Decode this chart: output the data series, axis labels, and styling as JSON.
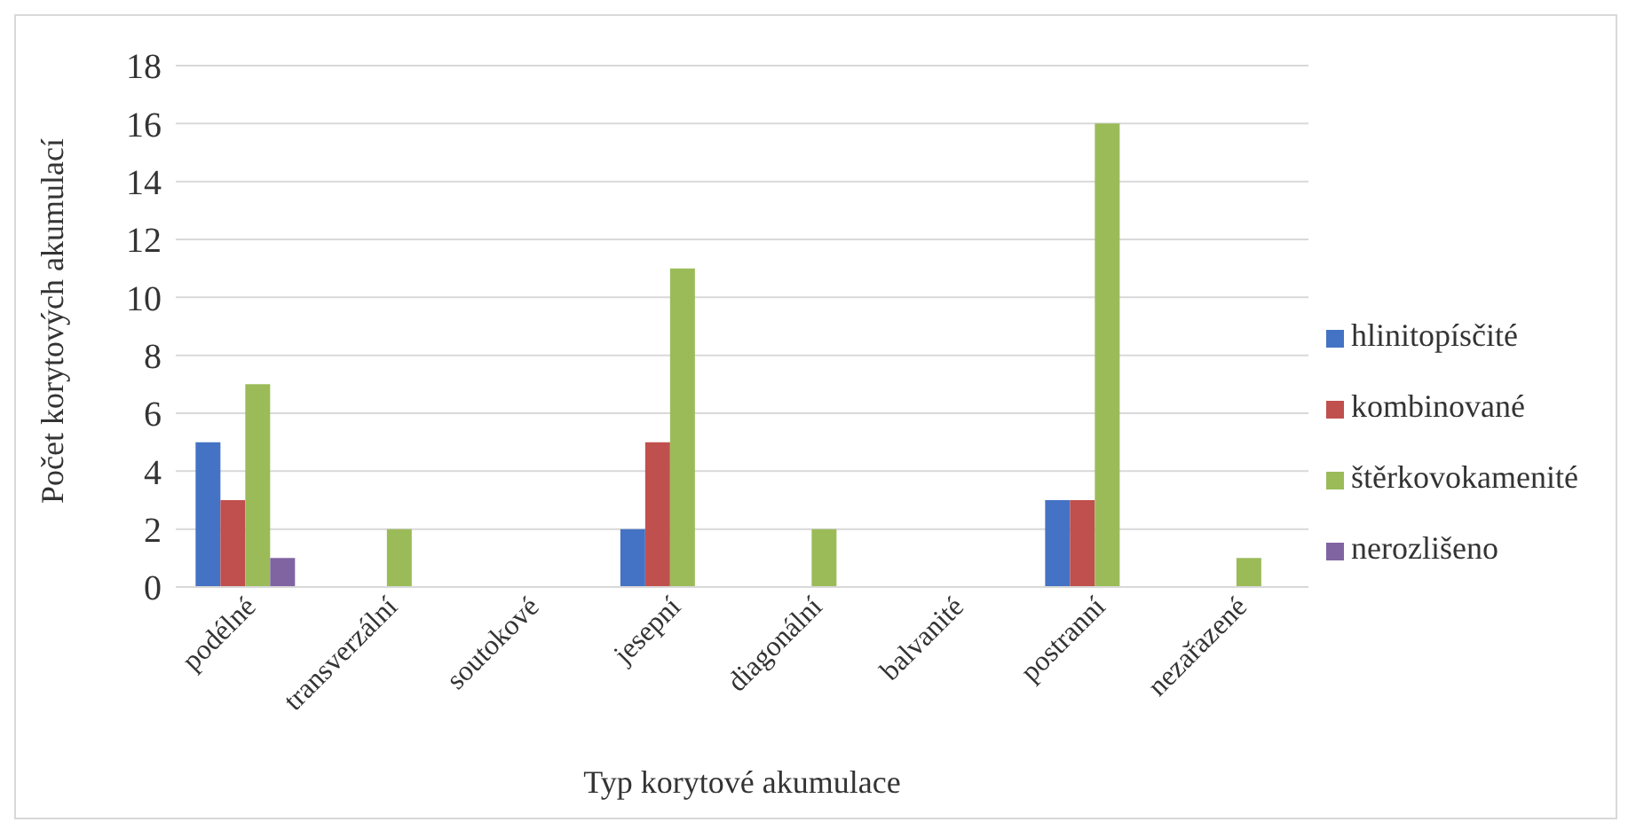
{
  "chart_data": {
    "type": "bar",
    "xlabel": "Typ korytové akumulace",
    "ylabel": "Počet korytových akumulací",
    "categories": [
      "podélné",
      "transverzální",
      "soutokové",
      "jesepní",
      "diagonální",
      "balvanité",
      "postranní",
      "nezařazené"
    ],
    "series": [
      {
        "name": "hlinitopísčité",
        "color": "#4472c4",
        "values": [
          5,
          null,
          null,
          2,
          null,
          null,
          3,
          null
        ]
      },
      {
        "name": "kombinované",
        "color": "#c0504d",
        "values": [
          3,
          null,
          null,
          5,
          null,
          null,
          3,
          null
        ]
      },
      {
        "name": "štěrkovokamenité",
        "color": "#9bbb59",
        "values": [
          7,
          2,
          null,
          11,
          2,
          null,
          16,
          1
        ]
      },
      {
        "name": "nerozlišeno",
        "color": "#8064a2",
        "values": [
          1,
          null,
          null,
          null,
          null,
          null,
          null,
          null
        ]
      }
    ],
    "ylim": [
      0,
      18
    ],
    "yticks": [
      0,
      2,
      4,
      6,
      8,
      10,
      12,
      14,
      16,
      18
    ],
    "grid": "y",
    "legend": "right"
  }
}
